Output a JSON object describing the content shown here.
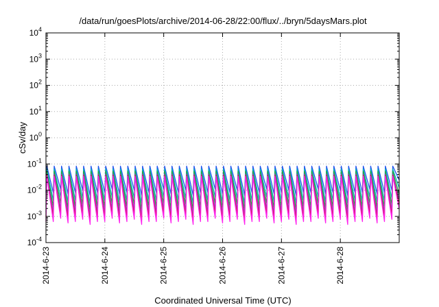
{
  "chart_data": {
    "type": "line",
    "title": "/data/run/goesPlots/archive/2014-06-28/22:00/flux/../bryn/5daysMars.plot",
    "xlabel": "Coordinated Universal Time (UTC)",
    "ylabel": "cSv/day",
    "yscale": "log",
    "ylim": [
      0.0001,
      10000
    ],
    "x_range_days": [
      0,
      6
    ],
    "x_ticks": [
      {
        "day": 0,
        "label": "2014-6-23"
      },
      {
        "day": 1,
        "label": "2014-6-24"
      },
      {
        "day": 2,
        "label": "2014-6-25"
      },
      {
        "day": 3,
        "label": "2014-6-26"
      },
      {
        "day": 4,
        "label": "2014-6-27"
      },
      {
        "day": 5,
        "label": "2014-6-28"
      }
    ],
    "y_ticks": [
      {
        "value": 0.0001,
        "base": "10",
        "exp": "-4"
      },
      {
        "value": 0.001,
        "base": "10",
        "exp": "-3"
      },
      {
        "value": 0.01,
        "base": "10",
        "exp": "-2"
      },
      {
        "value": 0.1,
        "base": "10",
        "exp": "-1"
      },
      {
        "value": 1,
        "base": "10",
        "exp": "0"
      },
      {
        "value": 10,
        "base": "10",
        "exp": "1"
      },
      {
        "value": 100,
        "base": "10",
        "exp": "2"
      },
      {
        "value": 1000,
        "base": "10",
        "exp": "3"
      },
      {
        "value": 10000,
        "base": "10",
        "exp": "4"
      }
    ],
    "grid": true,
    "oscillation": {
      "cycles_per_day": 8,
      "peak_value": 0.075,
      "trough_values": [
        0.0009,
        0.0009,
        0.0012,
        0.0008,
        0.0009,
        0.0011,
        0.0007,
        0.0009,
        0.0009,
        0.0012,
        0.0008,
        0.0009,
        0.0011,
        0.0007
      ]
    },
    "series": [
      {
        "color": "#2255ee",
        "peak_scale": 1.1,
        "trough_scale": 9.0
      },
      {
        "color": "#00b8b8",
        "peak_scale": 0.85,
        "trough_scale": 4.5
      },
      {
        "color": "#22aa33",
        "peak_scale": 0.7,
        "trough_scale": 2.6
      },
      {
        "color": "#8844cc",
        "peak_scale": 0.55,
        "trough_scale": 1.6
      },
      {
        "color": "#cc2244",
        "peak_scale": 0.5,
        "trough_scale": 1.05
      },
      {
        "color": "#ff22ee",
        "peak_scale": 0.45,
        "trough_scale": 0.7
      }
    ]
  }
}
